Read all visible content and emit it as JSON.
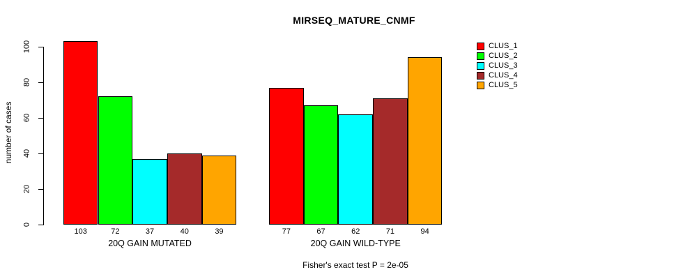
{
  "chart_data": {
    "type": "bar",
    "title": "MIRSEQ_MATURE_CNMF",
    "ylabel": "number of cases",
    "xlabel": "",
    "ylim": [
      0,
      100
    ],
    "yticks": [
      0,
      20,
      40,
      60,
      80,
      100
    ],
    "grid": false,
    "legend_position": "right",
    "groups": [
      {
        "label": "20Q GAIN MUTATED",
        "values": [
          103,
          72,
          37,
          40,
          39
        ]
      },
      {
        "label": "20Q GAIN WILD-TYPE",
        "values": [
          77,
          67,
          62,
          71,
          94
        ]
      }
    ],
    "series": [
      {
        "name": "CLUS_1",
        "color": "#ff0000"
      },
      {
        "name": "CLUS_2",
        "color": "#00ff00"
      },
      {
        "name": "CLUS_3",
        "color": "#00ffff"
      },
      {
        "name": "CLUS_4",
        "color": "#a52a2a"
      },
      {
        "name": "CLUS_5",
        "color": "#ffa500"
      }
    ],
    "caption": "Fisher's exact test P = 2e-05"
  },
  "colors": {
    "background": "#ffffff",
    "axis": "#000000",
    "text": "#000000"
  }
}
